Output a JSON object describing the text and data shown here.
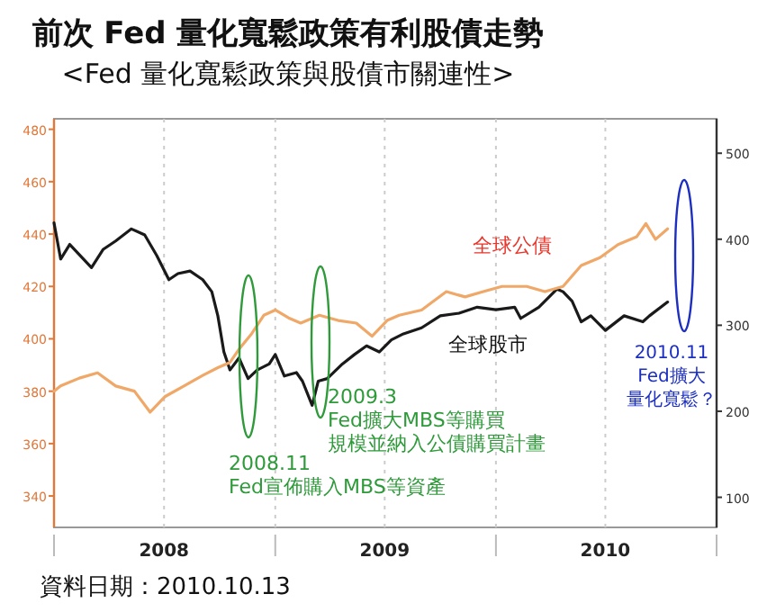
{
  "chart_data": {
    "type": "line",
    "title": "前次 Fed 量化寬鬆政策有利股債走勢",
    "subtitle": "<Fed 量化寬鬆政策與股債市關連性>",
    "xlim": [
      "2008-01-01",
      "2011-01-01"
    ],
    "xticks": [
      {
        "value": "2008-01-01",
        "label": null
      },
      {
        "value": "2008-07-01",
        "label": "2008"
      },
      {
        "value": "2009-01-01",
        "label": null
      },
      {
        "value": "2009-07-01",
        "label": "2009"
      },
      {
        "value": "2010-01-01",
        "label": null
      },
      {
        "value": "2010-07-01",
        "label": "2010"
      },
      {
        "value": "2011-01-01",
        "label": null
      }
    ],
    "ylim": [
      328,
      484
    ],
    "yticks": [
      340,
      360,
      380,
      400,
      420,
      440,
      460,
      480
    ],
    "y2lim": [
      65,
      540
    ],
    "y2ticks": [
      100,
      200,
      300,
      400,
      500
    ],
    "grid": "x",
    "marker": "none",
    "line_style": "solid",
    "series": [
      {
        "name": "全球股市",
        "color": "#1a1a1a",
        "axis": "y2",
        "x": [
          "2008-01-01",
          "2008-01-12",
          "2008-01-27",
          "2008-03-03",
          "2008-03-22",
          "2008-04-12",
          "2008-05-08",
          "2008-05-30",
          "2008-06-19",
          "2008-07-09",
          "2008-07-24",
          "2008-08-13",
          "2008-09-03",
          "2008-09-18",
          "2008-09-28",
          "2008-10-08",
          "2008-10-18",
          "2008-11-02",
          "2008-11-17",
          "2008-12-02",
          "2008-12-22",
          "2009-01-01",
          "2009-01-16",
          "2009-02-05",
          "2009-02-15",
          "2009-03-03",
          "2009-03-13",
          "2009-03-28",
          "2009-04-22",
          "2009-05-12",
          "2009-06-01",
          "2009-06-22",
          "2009-07-12",
          "2009-08-01",
          "2009-08-31",
          "2009-10-01",
          "2009-11-01",
          "2009-12-01",
          "2010-01-01",
          "2010-02-01",
          "2010-02-11",
          "2010-03-13",
          "2010-04-12",
          "2010-04-22",
          "2010-05-07",
          "2010-05-22",
          "2010-06-07",
          "2010-07-01",
          "2010-08-01",
          "2010-09-01",
          "2010-09-12",
          "2010-10-12"
        ],
        "values": [
          419,
          377,
          394,
          367,
          388,
          398,
          412,
          405,
          381,
          353,
          360,
          363,
          353,
          339,
          311,
          269,
          248,
          262,
          238,
          248,
          255,
          266,
          241,
          245,
          235,
          207,
          235,
          238,
          255,
          266,
          276,
          269,
          283,
          290,
          297,
          311,
          314,
          321,
          318,
          321,
          308,
          321,
          342,
          339,
          328,
          304,
          311,
          294,
          311,
          304,
          311,
          327
        ]
      },
      {
        "name": "全球公債",
        "color": "#f0a868",
        "axis": "y",
        "x": [
          "2008-01-01",
          "2008-01-12",
          "2008-02-12",
          "2008-03-13",
          "2008-04-12",
          "2008-05-13",
          "2008-06-08",
          "2008-07-03",
          "2008-08-03",
          "2008-09-03",
          "2008-09-28",
          "2008-10-18",
          "2008-11-02",
          "2008-11-23",
          "2008-12-13",
          "2009-01-01",
          "2009-01-23",
          "2009-02-12",
          "2009-03-15",
          "2009-04-15",
          "2009-05-15",
          "2009-06-10",
          "2009-07-05",
          "2009-07-25",
          "2009-08-31",
          "2009-10-11",
          "2009-11-11",
          "2009-12-11",
          "2010-01-11",
          "2010-02-21",
          "2010-03-23",
          "2010-04-22",
          "2010-05-22",
          "2010-06-22",
          "2010-07-22",
          "2010-08-22",
          "2010-09-06",
          "2010-09-22",
          "2010-10-12"
        ],
        "values": [
          380,
          382,
          385,
          387,
          382,
          380,
          372,
          378,
          382,
          386,
          389,
          391,
          396,
          402,
          409,
          411,
          408,
          406,
          409,
          407,
          406,
          401,
          407,
          409,
          411,
          418,
          416,
          418,
          420,
          420,
          418,
          420,
          428,
          431,
          436,
          439,
          444,
          438,
          442
        ]
      }
    ],
    "annotations": [
      "2008.11",
      "Fed宣佈購入MBS等資產",
      "2009.3",
      "Fed擴大MBS等購買規模並納入公債購買計畫",
      "2010.11",
      "Fed擴大量化寬鬆？",
      "資料日期：2010.10.13"
    ]
  }
}
